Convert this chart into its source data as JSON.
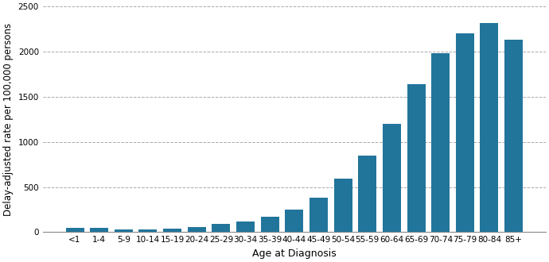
{
  "categories": [
    "<1",
    "1-4",
    "5-9",
    "10-14",
    "15-19",
    "20-24",
    "25-29",
    "30-34",
    "35-39",
    "40-44",
    "45-49",
    "50-54",
    "55-59",
    "60-64",
    "65-69",
    "70-74",
    "75-79",
    "80-84",
    "85+"
  ],
  "values": [
    50,
    45,
    30,
    30,
    40,
    60,
    90,
    120,
    170,
    250,
    380,
    590,
    850,
    1200,
    1640,
    1980,
    2200,
    2320,
    2130
  ],
  "bar_color": "#21759b",
  "xlabel": "Age at Diagnosis",
  "ylabel": "Delay-adjusted rate per 100,000 persons",
  "ylim": [
    0,
    2500
  ],
  "yticks": [
    0,
    500,
    1000,
    1500,
    2000,
    2500
  ],
  "grid_color": "#aaaaaa",
  "background_color": "#ffffff",
  "xlabel_fontsize": 9,
  "ylabel_fontsize": 8.5,
  "tick_fontsize": 7.5
}
